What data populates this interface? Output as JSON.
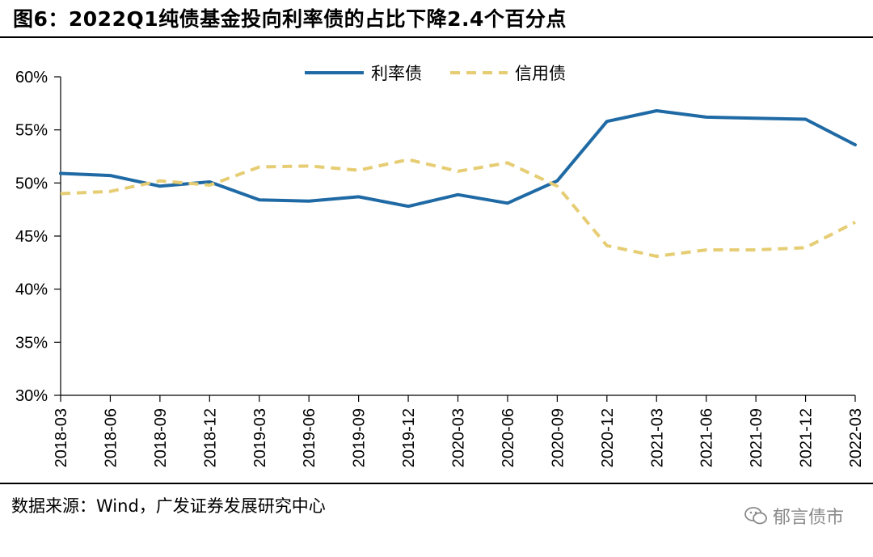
{
  "figure": {
    "title": "图6：2022Q1纯债基金投向利率债的占比下降2.4个百分点",
    "source": "数据来源：Wind，广发证券发展研究中心",
    "watermark": "郁言债市",
    "watermark_icon": "wechat-icon"
  },
  "chart_data": {
    "type": "line",
    "title": "",
    "xlabel": "",
    "ylabel": "",
    "ylim": [
      0.3,
      0.6
    ],
    "y_ticks": [
      "30%",
      "35%",
      "40%",
      "45%",
      "50%",
      "55%",
      "60%"
    ],
    "y_tick_values": [
      0.3,
      0.35,
      0.4,
      0.45,
      0.5,
      0.55,
      0.6
    ],
    "grid": false,
    "legend_position": "top-center",
    "categories": [
      "2018-03",
      "2018-06",
      "2018-09",
      "2018-12",
      "2019-03",
      "2019-06",
      "2019-09",
      "2019-12",
      "2020-03",
      "2020-06",
      "2020-09",
      "2020-12",
      "2021-03",
      "2021-06",
      "2021-09",
      "2021-12",
      "2022-03"
    ],
    "series": [
      {
        "name": "利率债",
        "style": "solid",
        "color": "#1f6aa5",
        "values": [
          0.509,
          0.507,
          0.497,
          0.501,
          0.484,
          0.483,
          0.487,
          0.478,
          0.489,
          0.481,
          0.502,
          0.558,
          0.568,
          0.562,
          0.561,
          0.56,
          0.536
        ]
      },
      {
        "name": "信用债",
        "style": "dashed",
        "color": "#e6cd73",
        "values": [
          0.49,
          0.492,
          0.502,
          0.498,
          0.515,
          0.516,
          0.512,
          0.522,
          0.511,
          0.519,
          0.497,
          0.441,
          0.431,
          0.437,
          0.437,
          0.439,
          0.463
        ]
      }
    ]
  }
}
